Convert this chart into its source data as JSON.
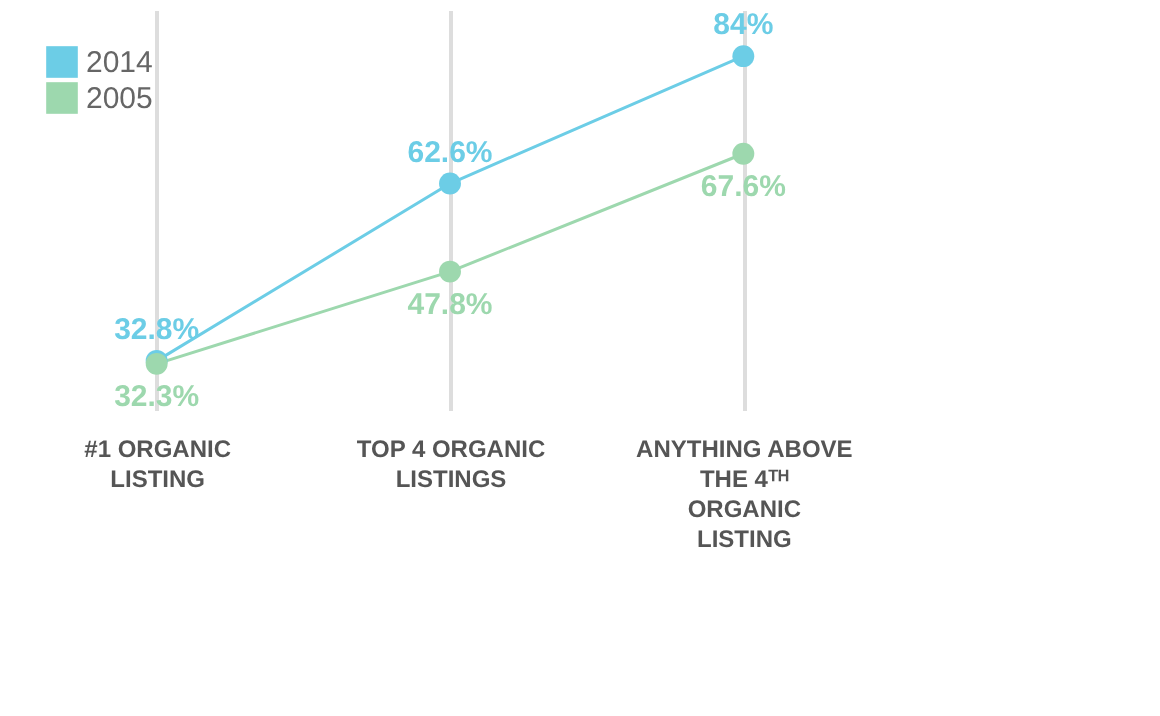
{
  "chart_data": {
    "type": "line",
    "categories": [
      "#1 ORGANIC LISTING",
      "TOP 4 ORGANIC LISTINGS",
      "ANYTHING ABOVE THE 4ᵀᴴ ORGANIC LISTING"
    ],
    "series": [
      {
        "name": "2014",
        "color": "#6ccde6",
        "values": [
          32.8,
          62.6,
          84
        ],
        "value_labels": [
          "32.8%",
          "62.6%",
          "84%"
        ]
      },
      {
        "name": "2005",
        "color": "#9dd8ae",
        "values": [
          32.3,
          47.8,
          67.6
        ],
        "value_labels": [
          "32.3%",
          "47.8%",
          "67.6%"
        ]
      }
    ],
    "marker": "circle",
    "line_style": "solid",
    "grid": "x",
    "legend": "top left"
  }
}
